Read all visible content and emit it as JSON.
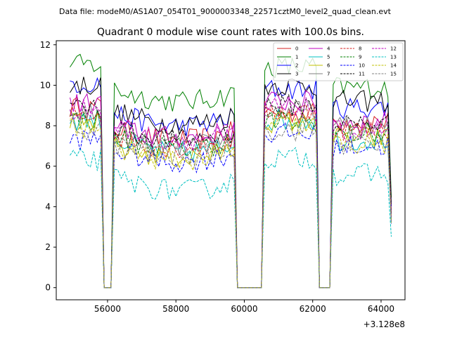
{
  "chart_data": {
    "type": "line",
    "suptitle": "Data file: modeM0/AS1A07_054T01_9000003348_22571cztM0_level2_quad_clean.evt",
    "title": "Quadrant 0 module wise count rates with 100.0s bins.",
    "xlabel": "",
    "ylabel": "",
    "x_offset_label": "+3.128e8",
    "xlim": [
      54500,
      64700
    ],
    "ylim": [
      -0.6,
      12.2
    ],
    "xticks": [
      56000,
      58000,
      60000,
      62000,
      64000
    ],
    "xtick_labels": [
      "56000",
      "58000",
      "60000",
      "62000",
      "64000"
    ],
    "yticks": [
      0,
      2,
      4,
      6,
      8,
      10,
      12
    ],
    "ytick_labels": [
      "0",
      "2",
      "4",
      "6",
      "8",
      "10",
      "12"
    ],
    "bin_width": 100,
    "legend_position": "top-right",
    "segments": [
      {
        "start": 54900,
        "end": 55800
      },
      {
        "start": 56200,
        "end": 59700
      },
      {
        "start": 60600,
        "end": 62100
      },
      {
        "start": 62600,
        "end": 64300
      }
    ],
    "gaps": [
      {
        "start": 55900,
        "end": 56100
      },
      {
        "start": 59800,
        "end": 60500
      },
      {
        "start": 62200,
        "end": 62500
      }
    ],
    "series": [
      {
        "name": "0",
        "color": "#d62020",
        "style": "solid",
        "seg_levels": [
          8.9,
          7.9,
          8.6,
          8.2
        ]
      },
      {
        "name": "1",
        "color": "#008000",
        "style": "solid",
        "seg_levels": [
          11.0,
          9.8,
          10.9,
          9.9
        ]
      },
      {
        "name": "2",
        "color": "#0000ff",
        "style": "solid",
        "seg_levels": [
          10.1,
          8.6,
          9.8,
          8.9
        ]
      },
      {
        "name": "3",
        "color": "#000000",
        "style": "solid",
        "seg_levels": [
          10.0,
          8.7,
          10.0,
          9.2
        ]
      },
      {
        "name": "4",
        "color": "#c000c0",
        "style": "solid",
        "seg_levels": [
          9.1,
          8.0,
          9.2,
          8.2
        ]
      },
      {
        "name": "5",
        "color": "#00c0c0",
        "style": "solid",
        "seg_levels": [
          8.3,
          7.3,
          8.3,
          7.3
        ]
      },
      {
        "name": "6",
        "color": "#c0c000",
        "style": "solid",
        "seg_levels": [
          8.1,
          7.0,
          8.2,
          7.4
        ]
      },
      {
        "name": "7",
        "color": "#7f7f7f",
        "style": "solid",
        "seg_levels": [
          8.6,
          7.6,
          8.7,
          7.9
        ]
      },
      {
        "name": "8",
        "color": "#d62020",
        "style": "dashed",
        "seg_levels": [
          8.6,
          7.5,
          8.7,
          7.8
        ]
      },
      {
        "name": "9",
        "color": "#008000",
        "style": "dashed",
        "seg_levels": [
          8.3,
          7.5,
          8.2,
          7.6
        ]
      },
      {
        "name": "10",
        "color": "#0000ff",
        "style": "dashed",
        "seg_levels": [
          7.3,
          6.8,
          7.6,
          7.0
        ]
      },
      {
        "name": "11",
        "color": "#000000",
        "style": "dashed",
        "seg_levels": [
          8.9,
          7.9,
          9.0,
          8.1
        ]
      },
      {
        "name": "12",
        "color": "#c000c0",
        "style": "dashed",
        "seg_levels": [
          8.8,
          7.9,
          8.9,
          7.7
        ]
      },
      {
        "name": "13",
        "color": "#00c0c0",
        "style": "dashed",
        "seg_levels": [
          6.3,
          5.4,
          6.4,
          5.6
        ]
      },
      {
        "name": "14",
        "color": "#c0c000",
        "style": "dashed",
        "seg_levels": [
          7.9,
          6.9,
          8.0,
          7.1
        ]
      },
      {
        "name": "15",
        "color": "#7f7f7f",
        "style": "dashed",
        "seg_levels": [
          7.8,
          7.1,
          7.8,
          7.1
        ]
      }
    ]
  }
}
